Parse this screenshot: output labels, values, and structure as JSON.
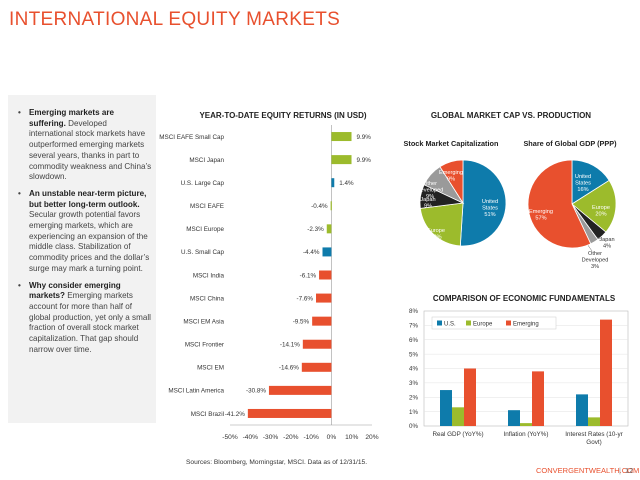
{
  "page": {
    "title": "INTERNATIONAL EQUITY MARKETS",
    "source": "Sources: Bloomberg, Morningstar, MSCI. Data as of 12/31/15.",
    "site": "CONVERGENTWEALTH.COM",
    "separator": "|",
    "page_number": "12"
  },
  "bullets": [
    {
      "bold": "Emerging markets are suffering.",
      "text": " Developed international stock markets have outperformed emerging markets several years, thanks in part to commodity weakness and China’s slowdown."
    },
    {
      "bold": "An unstable near-term picture, but better long-term outlook.",
      "text": " Secular growth potential favors emerging markets, which are experiencing an expansion of the middle class. Stabilization of commodity prices and the dollar’s surge may mark a turning point."
    },
    {
      "bold": "Why consider emerging markets?",
      "text": " Emerging markets account for more than half of global production, yet only a small fraction of overall stock market capitalization. That gap should narrow over time."
    }
  ],
  "colors": {
    "orange": "#e8502e",
    "green": "#9cbb2c",
    "blue": "#0e7bab",
    "gray": "#9a9a9a",
    "black": "#222222",
    "title": "#e8502e"
  },
  "chart_data": [
    {
      "type": "bar",
      "orientation": "horizontal",
      "title": "YEAR-TO-DATE EQUITY RETURNS (IN USD)",
      "categories": [
        "MSCI EAFE Small Cap",
        "MSCI Japan",
        "U.S. Large Cap",
        "MSCI EAFE",
        "MSCI Europe",
        "U.S. Small Cap",
        "MSCI India",
        "MSCI China",
        "MSCI EM Asia",
        "MSCI Frontier",
        "MSCI EM",
        "MSCI Latin America",
        "MSCI Brazil"
      ],
      "values": [
        9.9,
        9.9,
        1.4,
        -0.4,
        -2.3,
        -4.4,
        -6.1,
        -7.6,
        -9.5,
        -14.1,
        -14.6,
        -30.8,
        -41.2
      ],
      "labels": [
        "9.9%",
        "9.9%",
        "1.4%",
        "-0.4%",
        "-2.3%",
        "-4.4%",
        "-6.1%",
        "-7.6%",
        "-9.5%",
        "-14.1%",
        "-14.6%",
        "-30.8%",
        "-41.2%"
      ],
      "bar_colors": [
        "green",
        "green",
        "blue",
        "green",
        "green",
        "blue",
        "orange",
        "orange",
        "orange",
        "orange",
        "orange",
        "orange",
        "orange"
      ],
      "xlim": [
        -50,
        20
      ],
      "xticks": [
        "-50%",
        "-40%",
        "-30%",
        "-20%",
        "-10%",
        "0%",
        "10%",
        "20%"
      ]
    },
    {
      "type": "pie",
      "group_title": "GLOBAL MARKET CAP VS. PRODUCTION",
      "title": "Stock Market Capitalization",
      "slices": [
        {
          "name": "United States",
          "value": 51,
          "label": "51%",
          "color": "blue"
        },
        {
          "name": "Europe",
          "value": 22,
          "label": "22%",
          "color": "green"
        },
        {
          "name": "Japan",
          "value": 9,
          "label": "9%",
          "color": "black"
        },
        {
          "name": "Other Developed",
          "value": 9,
          "label": "9%",
          "color": "gray"
        },
        {
          "name": "Emerging",
          "value": 9,
          "label": "9%",
          "color": "orange"
        }
      ]
    },
    {
      "type": "pie",
      "title": "Share of Global GDP (PPP)",
      "slices": [
        {
          "name": "United States",
          "value": 16,
          "label": "16%",
          "color": "blue"
        },
        {
          "name": "Europe",
          "value": 20,
          "label": "20%",
          "color": "green"
        },
        {
          "name": "Japan",
          "value": 4,
          "label": "4%",
          "color": "black"
        },
        {
          "name": "Other Developed",
          "value": 3,
          "label": "3%",
          "color": "gray"
        },
        {
          "name": "Emerging",
          "value": 57,
          "label": "57%",
          "color": "orange"
        }
      ]
    },
    {
      "type": "bar",
      "title": "COMPARISON OF ECONOMIC FUNDAMENTALS",
      "categories": [
        "Real GDP (YoY%)",
        "Inflation (YoY%)",
        "Interest Rates (10-yr Govt)"
      ],
      "series": [
        {
          "name": "U.S.",
          "color": "blue",
          "values": [
            2.5,
            1.1,
            2.2
          ]
        },
        {
          "name": "Europe",
          "color": "green",
          "values": [
            1.3,
            0.2,
            0.6
          ]
        },
        {
          "name": "Emerging",
          "color": "orange",
          "values": [
            4.0,
            3.8,
            7.4
          ]
        }
      ],
      "ylim": [
        0,
        8
      ],
      "yticks": [
        "0%",
        "1%",
        "2%",
        "3%",
        "4%",
        "5%",
        "6%",
        "7%",
        "8%"
      ],
      "grid": true,
      "legend": "top-left"
    }
  ]
}
